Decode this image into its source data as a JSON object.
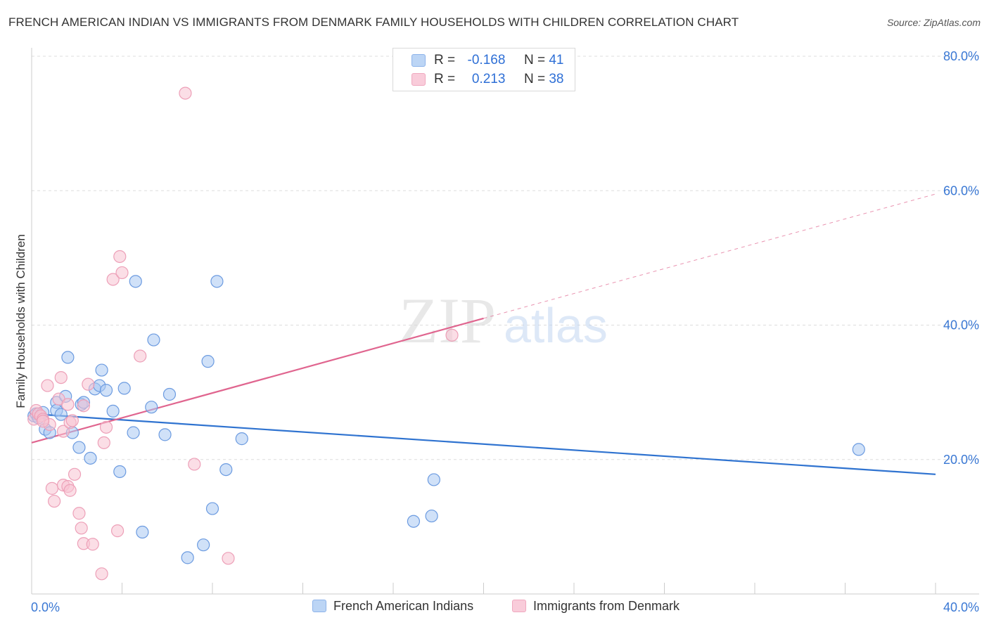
{
  "header": {
    "title": "FRENCH AMERICAN INDIAN VS IMMIGRANTS FROM DENMARK FAMILY HOUSEHOLDS WITH CHILDREN CORRELATION CHART",
    "source": "Source: ZipAtlas.com"
  },
  "legend": {
    "row1": {
      "r_label": "R =",
      "r_value": "-0.168",
      "n_label": "N =",
      "n_value": "41"
    },
    "row2": {
      "r_label": "R =",
      "r_value": "0.213",
      "n_label": "N =",
      "n_value": "38"
    }
  },
  "watermark": {
    "zip": "ZIP",
    "atlas": "atlas"
  },
  "colors": {
    "blue_fill": "#a9c8f2",
    "blue_stroke": "#6c9be0",
    "blue_line": "#2f73d0",
    "pink_fill": "#f7c2d2",
    "pink_stroke": "#eda0b8",
    "pink_line": "#e0658f",
    "axis_text": "#3a78d4",
    "grid": "#dddddd"
  },
  "chart_data": {
    "type": "scatter",
    "title": "FRENCH AMERICAN INDIAN VS IMMIGRANTS FROM DENMARK FAMILY HOUSEHOLDS WITH CHILDREN CORRELATION CHART",
    "xlabel": "",
    "ylabel": "Family Households with Children",
    "xlim": [
      0,
      40
    ],
    "ylim": [
      0,
      80
    ],
    "x_tick_labels": [
      "0.0%",
      "40.0%"
    ],
    "y_ticks": [
      20,
      40,
      60,
      80
    ],
    "y_tick_labels": [
      "20.0%",
      "40.0%",
      "60.0%",
      "80.0%"
    ],
    "grid": true,
    "legend_position": "top-center",
    "series": [
      {
        "name": "French American Indians",
        "color": "#a9c8f2",
        "r": -0.168,
        "n": 41,
        "trend": {
          "x": [
            0,
            40
          ],
          "y": [
            26.8,
            17.8
          ],
          "dashed_from": null
        },
        "points": [
          [
            0.1,
            26.5
          ],
          [
            0.2,
            26.8
          ],
          [
            0.3,
            26.2
          ],
          [
            0.5,
            27.0
          ],
          [
            0.6,
            24.5
          ],
          [
            0.8,
            24.0
          ],
          [
            1.1,
            28.5
          ],
          [
            1.1,
            27.3
          ],
          [
            1.3,
            26.7
          ],
          [
            1.5,
            29.4
          ],
          [
            1.6,
            35.2
          ],
          [
            1.8,
            24.0
          ],
          [
            2.1,
            21.8
          ],
          [
            2.2,
            28.2
          ],
          [
            2.3,
            28.5
          ],
          [
            2.6,
            20.2
          ],
          [
            2.8,
            30.5
          ],
          [
            3.0,
            31.0
          ],
          [
            3.1,
            33.3
          ],
          [
            3.3,
            30.3
          ],
          [
            3.6,
            27.2
          ],
          [
            3.9,
            18.2
          ],
          [
            4.1,
            30.6
          ],
          [
            4.5,
            24.0
          ],
          [
            4.6,
            46.5
          ],
          [
            4.9,
            9.2
          ],
          [
            5.3,
            27.8
          ],
          [
            5.4,
            37.8
          ],
          [
            5.9,
            23.7
          ],
          [
            6.1,
            29.7
          ],
          [
            6.9,
            5.4
          ],
          [
            7.6,
            7.3
          ],
          [
            7.8,
            34.6
          ],
          [
            8.0,
            12.7
          ],
          [
            8.2,
            46.5
          ],
          [
            8.6,
            18.5
          ],
          [
            9.3,
            23.1
          ],
          [
            16.9,
            10.8
          ],
          [
            17.7,
            11.6
          ],
          [
            17.8,
            17.0
          ],
          [
            36.6,
            21.5
          ]
        ]
      },
      {
        "name": "Immigrants from Denmark",
        "color": "#f7c2d2",
        "r": 0.213,
        "n": 38,
        "trend": {
          "x": [
            0,
            40
          ],
          "y": [
            22.5,
            59.5
          ],
          "dashed_from": 20
        },
        "points": [
          [
            0.1,
            26.0
          ],
          [
            0.2,
            27.3
          ],
          [
            0.3,
            26.8
          ],
          [
            0.4,
            26.5
          ],
          [
            0.5,
            26.0
          ],
          [
            0.7,
            31.0
          ],
          [
            0.8,
            25.2
          ],
          [
            0.9,
            15.7
          ],
          [
            1.0,
            13.8
          ],
          [
            1.2,
            29.0
          ],
          [
            1.3,
            32.2
          ],
          [
            1.4,
            24.2
          ],
          [
            1.4,
            16.2
          ],
          [
            1.6,
            16.0
          ],
          [
            1.6,
            28.2
          ],
          [
            1.7,
            15.4
          ],
          [
            1.7,
            25.5
          ],
          [
            1.8,
            25.8
          ],
          [
            1.9,
            17.8
          ],
          [
            2.1,
            12.0
          ],
          [
            2.2,
            9.8
          ],
          [
            2.3,
            28.0
          ],
          [
            2.3,
            7.5
          ],
          [
            2.5,
            31.2
          ],
          [
            2.7,
            7.4
          ],
          [
            3.1,
            3.0
          ],
          [
            3.2,
            22.5
          ],
          [
            3.3,
            24.8
          ],
          [
            3.6,
            46.8
          ],
          [
            3.8,
            9.4
          ],
          [
            3.9,
            50.2
          ],
          [
            4.0,
            47.8
          ],
          [
            4.8,
            35.4
          ],
          [
            6.8,
            74.5
          ],
          [
            7.2,
            19.3
          ],
          [
            8.7,
            5.3
          ],
          [
            18.6,
            38.5
          ],
          [
            0.5,
            25.7
          ]
        ]
      }
    ]
  }
}
